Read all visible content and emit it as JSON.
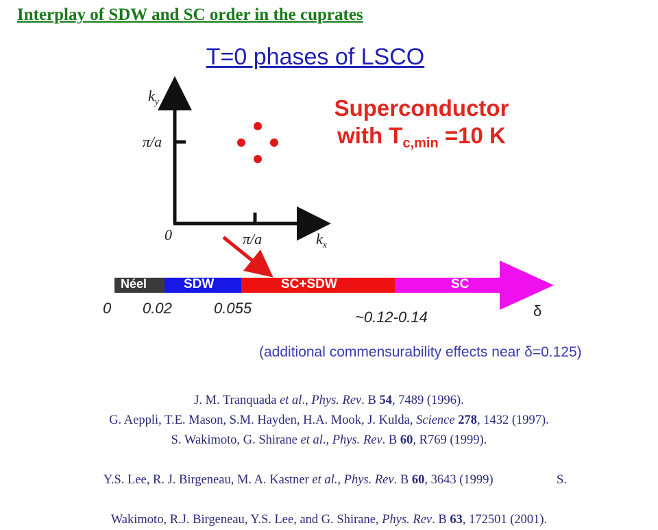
{
  "header": {
    "title": "Interplay of SDW and SC order in the cuprates"
  },
  "subtitle": "T=0 phases of LSCO",
  "sc_label": {
    "line1": "Superconductor",
    "line2_prefix": "with T",
    "line2_sub": "c,min",
    "line2_suffix": " =10 K"
  },
  "axes": {
    "y_label": "k",
    "y_sub": "y",
    "x_label": "k",
    "x_sub": "x",
    "y_tick": "π/a",
    "x_tick": "π/a",
    "origin": "0"
  },
  "phase_bar": {
    "segments": [
      {
        "label": "Néel",
        "color": "#3a3a3a",
        "start": 0.0,
        "end": 0.02
      },
      {
        "label": "SDW",
        "color": "#1717e6",
        "start": 0.02,
        "end": 0.055
      },
      {
        "label": "SC+SDW",
        "color": "#ee1111",
        "start": 0.055,
        "end": 0.13
      },
      {
        "label": "SC",
        "color": "#ee11ee",
        "start": 0.13,
        "end": null
      }
    ],
    "ticks": [
      "0",
      "0.02",
      "0.055"
    ],
    "crossover": "~0.12-0.14",
    "axis_symbol": "δ"
  },
  "note": "(additional commensurability effects near δ=0.125)",
  "references": [
    [
      "J. M. Tranquada ",
      "et al",
      "., ",
      "Phys. Rev",
      ". B ",
      "54",
      ", 7489 (1996)."
    ],
    [
      "G. Aeppli, T.E. Mason, S.M. Hayden, H.A. Mook, J. Kulda, ",
      "Science",
      " ",
      "278",
      ", 1432 (1997)."
    ],
    [
      "S. Wakimoto, G. Shirane ",
      "et al",
      "., ",
      "Phys. Rev",
      ". B ",
      "60",
      ", R769 (1999)."
    ],
    [
      "Y.S. Lee, R. J. Birgeneau, M. A. Kastner ",
      "et al., Phys. Rev",
      ". B ",
      "60",
      ", 3643 (1999)                    S."
    ],
    [
      "Wakimoto, R.J. Birgeneau, Y.S. Lee, and G. Shirane, ",
      "Phys. Rev",
      ". B ",
      "63",
      ", 172501 (2001)."
    ]
  ],
  "colors": {
    "header": "#1a7a1a",
    "subtitle": "#1f1fb4",
    "accent": "#e0261e",
    "reference": "#2a2a7a"
  }
}
